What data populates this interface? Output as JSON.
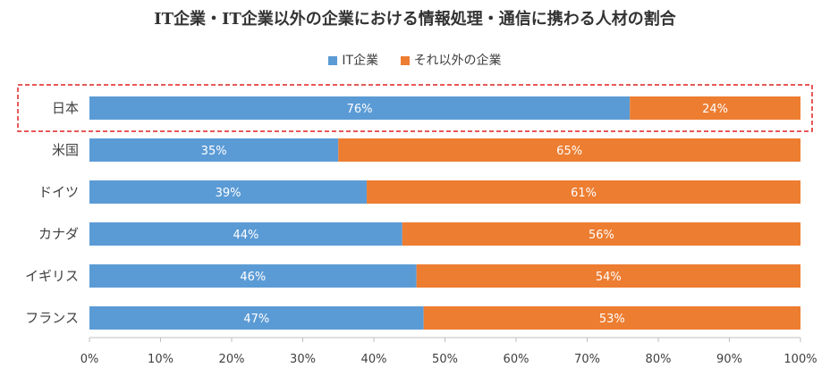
{
  "chart_data": {
    "type": "bar",
    "orientation": "horizontal",
    "stacked": true,
    "percent_stacked": true,
    "title": "IT企業・IT企業以外の企業における情報処理・通信に携わる人材の割合",
    "categories": [
      "日本",
      "米国",
      "ドイツ",
      "カナダ",
      "イギリス",
      "フランス"
    ],
    "series": [
      {
        "name": "IT企業",
        "color": "#5b9bd5",
        "values": [
          76,
          35,
          39,
          44,
          46,
          47
        ],
        "labels": [
          "76%",
          "35%",
          "39%",
          "44%",
          "46%",
          "47%"
        ]
      },
      {
        "name": "それ以外の企業",
        "color": "#ed7d31",
        "values": [
          24,
          65,
          61,
          56,
          54,
          53
        ],
        "labels": [
          "24%",
          "65%",
          "61%",
          "56%",
          "54%",
          "53%"
        ]
      }
    ],
    "xlim": [
      0,
      100
    ],
    "xticks": [
      "0%",
      "10%",
      "20%",
      "30%",
      "40%",
      "50%",
      "60%",
      "70%",
      "80%",
      "90%",
      "100%"
    ],
    "legend_position": "top",
    "highlight": {
      "category": "日本",
      "style": "red dashed box"
    },
    "grid": false
  }
}
